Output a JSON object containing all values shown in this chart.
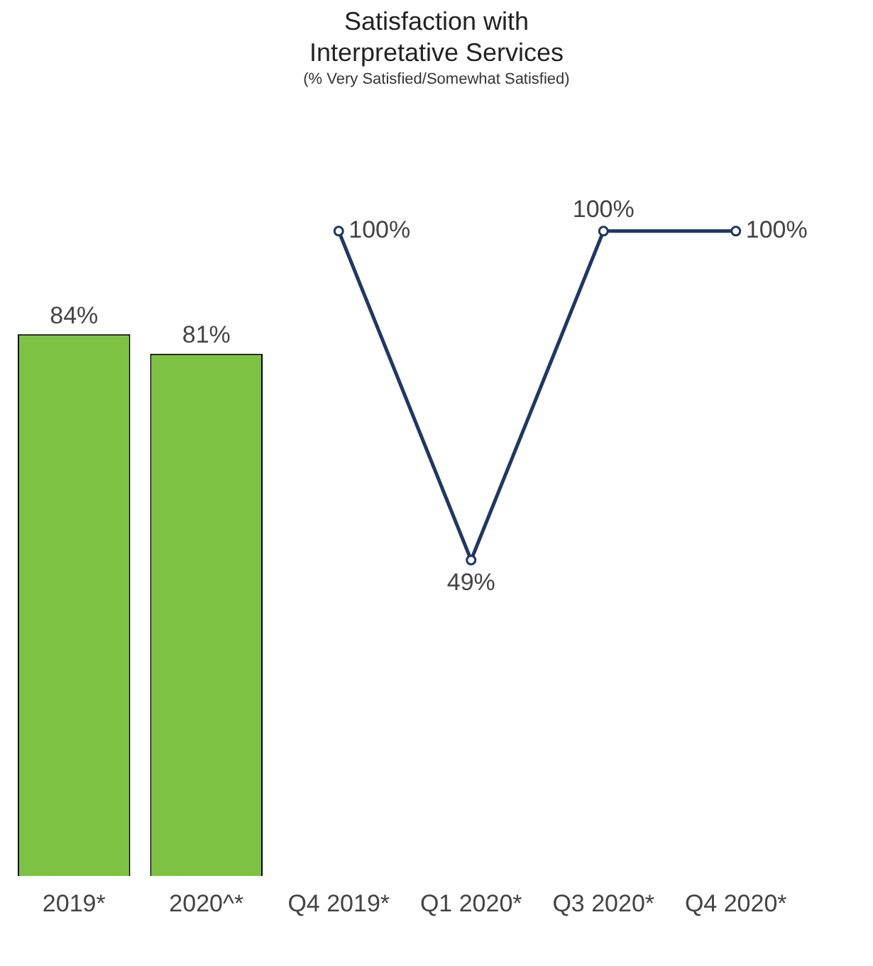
{
  "chart_data": {
    "type": "bar",
    "title": "Satisfaction with Interpretative Services",
    "subtitle": "(% Very Satisfied/Somewhat Satisfied)",
    "categories": [
      "2019*",
      "2020^*",
      "Q4 2019*",
      "Q1 2020*",
      "Q3 2020*",
      "Q4 2020*"
    ],
    "series": [
      {
        "color": "#7dc242",
        "values": [
          84,
          81,
          null,
          null,
          null,
          null
        ],
        "value_labels": [
          "84%",
          "81%",
          null,
          null,
          null,
          null
        ]
      },
      {
        "type": "line",
        "color": "#1f3864",
        "values": [
          null,
          null,
          100,
          49,
          100,
          100
        ],
        "value_labels": [
          null,
          null,
          "100%",
          "49%",
          "100%",
          "100%"
        ]
      }
    ],
    "legend": false,
    "grid": false,
    "tick_labels": "x",
    "marker": "circle"
  }
}
